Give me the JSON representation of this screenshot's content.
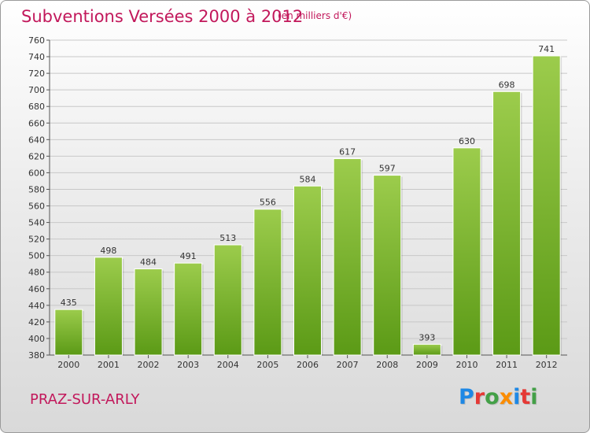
{
  "title": "Subventions Versées 2000 à 2012",
  "subtitle": "(en milliers d'€)",
  "commune": "PRAZ-SUR-ARLY",
  "logo": {
    "text": "Proxiti",
    "colors": [
      "#1e88e5",
      "#e53935",
      "#43a047",
      "#fb8c00",
      "#1e88e5",
      "#e53935",
      "#43a047"
    ]
  },
  "colors": {
    "bar_light": "#9ccc4c",
    "bar_dark": "#5b9a16",
    "title": "#c2185b"
  },
  "chart_data": {
    "type": "bar",
    "title": "Subventions Versées 2000 à 2012",
    "subtitle": "(en milliers d'€)",
    "categories": [
      "2000",
      "2001",
      "2002",
      "2003",
      "2004",
      "2005",
      "2006",
      "2007",
      "2008",
      "2009",
      "2010",
      "2011",
      "2012"
    ],
    "values": [
      435,
      498,
      484,
      491,
      513,
      556,
      584,
      617,
      597,
      393,
      630,
      698,
      741
    ],
    "ylim": [
      380,
      760
    ],
    "yticks": [
      380,
      400,
      420,
      440,
      460,
      480,
      500,
      520,
      540,
      560,
      580,
      600,
      620,
      640,
      660,
      680,
      700,
      720,
      740,
      760
    ],
    "grid": true,
    "xlabel": "",
    "ylabel": ""
  }
}
